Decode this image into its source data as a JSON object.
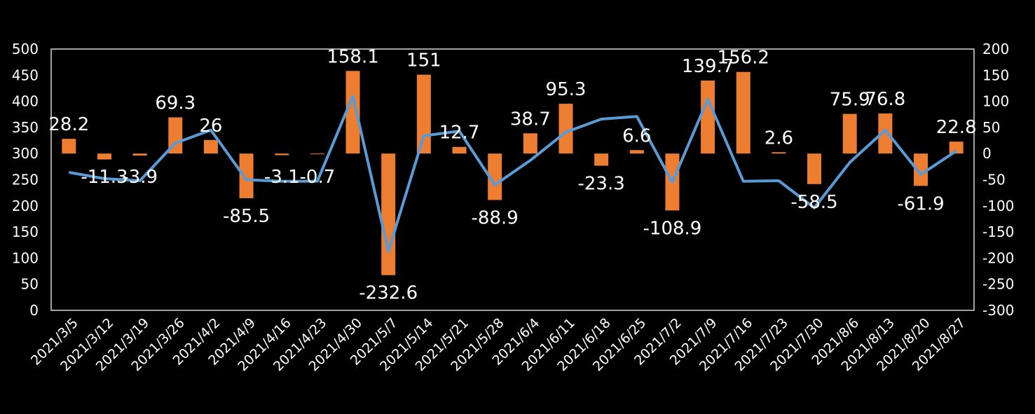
{
  "chart_data": {
    "type": "bar+line",
    "title": "",
    "categories": [
      "2021/3/5",
      "2021/3/12",
      "2021/3/19",
      "2021/3/26",
      "2021/4/2",
      "2021/4/9",
      "2021/4/16",
      "2021/4/23",
      "2021/4/30",
      "2021/5/7",
      "2021/5/14",
      "2021/5/21",
      "2021/5/28",
      "2021/6/4",
      "2021/6/11",
      "2021/6/18",
      "2021/6/25",
      "2021/7/2",
      "2021/7/9",
      "2021/7/16",
      "2021/7/23",
      "2021/7/30",
      "2021/8/6",
      "2021/8/13",
      "2021/8/20",
      "2021/8/27"
    ],
    "series": [
      {
        "name": "bars",
        "type": "bar",
        "axis": "right",
        "color": "#ED7D31",
        "values": [
          28.2,
          -11.3,
          -3.9,
          69.3,
          26,
          -85.5,
          -3.1,
          -0.7,
          158.1,
          -232.6,
          151,
          12.7,
          -88.9,
          38.7,
          95.3,
          -23.3,
          6.6,
          -108.9,
          139.7,
          156.2,
          2.6,
          -58.5,
          75.9,
          76.8,
          -61.9,
          22.8
        ],
        "data_labels": [
          "28.2",
          "-11.3",
          "-3.9",
          "69.3",
          "26",
          "-85.5",
          "-3.1",
          "-0.7",
          "158.1",
          "-232.6",
          "151",
          "12.7",
          "-88.9",
          "38.7",
          "95.3",
          "-23.3",
          "6.6",
          "-108.9",
          "139.7",
          "156.2",
          "2.6",
          "-58.5",
          "75.9",
          "76.8",
          "-61.9",
          "22.8"
        ]
      },
      {
        "name": "line",
        "type": "line",
        "axis": "left",
        "color": "#5B9BD5",
        "values": [
          264,
          252,
          248,
          320,
          345,
          250,
          247,
          247,
          410,
          113,
          334,
          343,
          240,
          287,
          341,
          366,
          371,
          245,
          404,
          247,
          248,
          196,
          283,
          345,
          260,
          305
        ]
      }
    ],
    "y_left": {
      "min": 0,
      "max": 500,
      "ticks": [
        "500",
        "450",
        "400",
        "350",
        "300",
        "250",
        "200",
        "150",
        "100",
        "50",
        "0"
      ]
    },
    "y_right": {
      "min": -300,
      "max": 200,
      "ticks": [
        "200",
        "150",
        "100",
        "50",
        "0",
        "-50",
        "-100",
        "-150",
        "-200",
        "-250",
        "-300"
      ]
    },
    "xlabel": "",
    "ylabel": "",
    "legend": "none",
    "grid": false
  }
}
